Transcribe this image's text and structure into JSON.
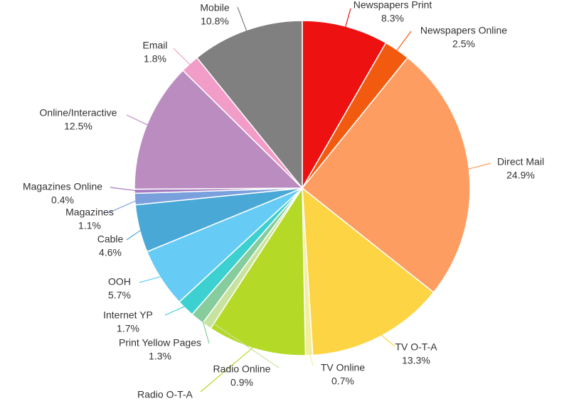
{
  "chart_data": {
    "type": "pie",
    "categories": [
      "Newspapers Print",
      "Newspapers Online",
      "Direct Mail",
      "TV O-T-A",
      "TV Online",
      "Radio O-T-A",
      "Radio Online",
      "Print Yellow Pages",
      "Internet YP",
      "OOH",
      "Cable",
      "Magazines",
      "Magazines Online",
      "Online/Interactive",
      "Email",
      "Mobile"
    ],
    "values": [
      8.3,
      2.5,
      24.9,
      13.3,
      0.7,
      9.5,
      0.9,
      1.3,
      1.7,
      5.7,
      4.6,
      1.1,
      0.4,
      12.5,
      1.8,
      10.8
    ],
    "value_labels": [
      "8.3%",
      "2.5%",
      "24.9%",
      "13.3%",
      "0.7%",
      null,
      "0.9%",
      "1.3%",
      "1.7%",
      "5.7%",
      "4.6%",
      "1.1%",
      "0.4%",
      "12.5%",
      "1.8%",
      "10.8%"
    ],
    "colors": [
      "#ee1111",
      "#f25a0f",
      "#fd9d62",
      "#fdd443",
      "#f3ee9c",
      "#b5d927",
      "#c8e3a0",
      "#86cc9c",
      "#3dd0d0",
      "#66ccf5",
      "#4aa8d6",
      "#7a9fdd",
      "#a679c0",
      "#bb8cc0",
      "#f29cc8",
      "#808080"
    ]
  }
}
